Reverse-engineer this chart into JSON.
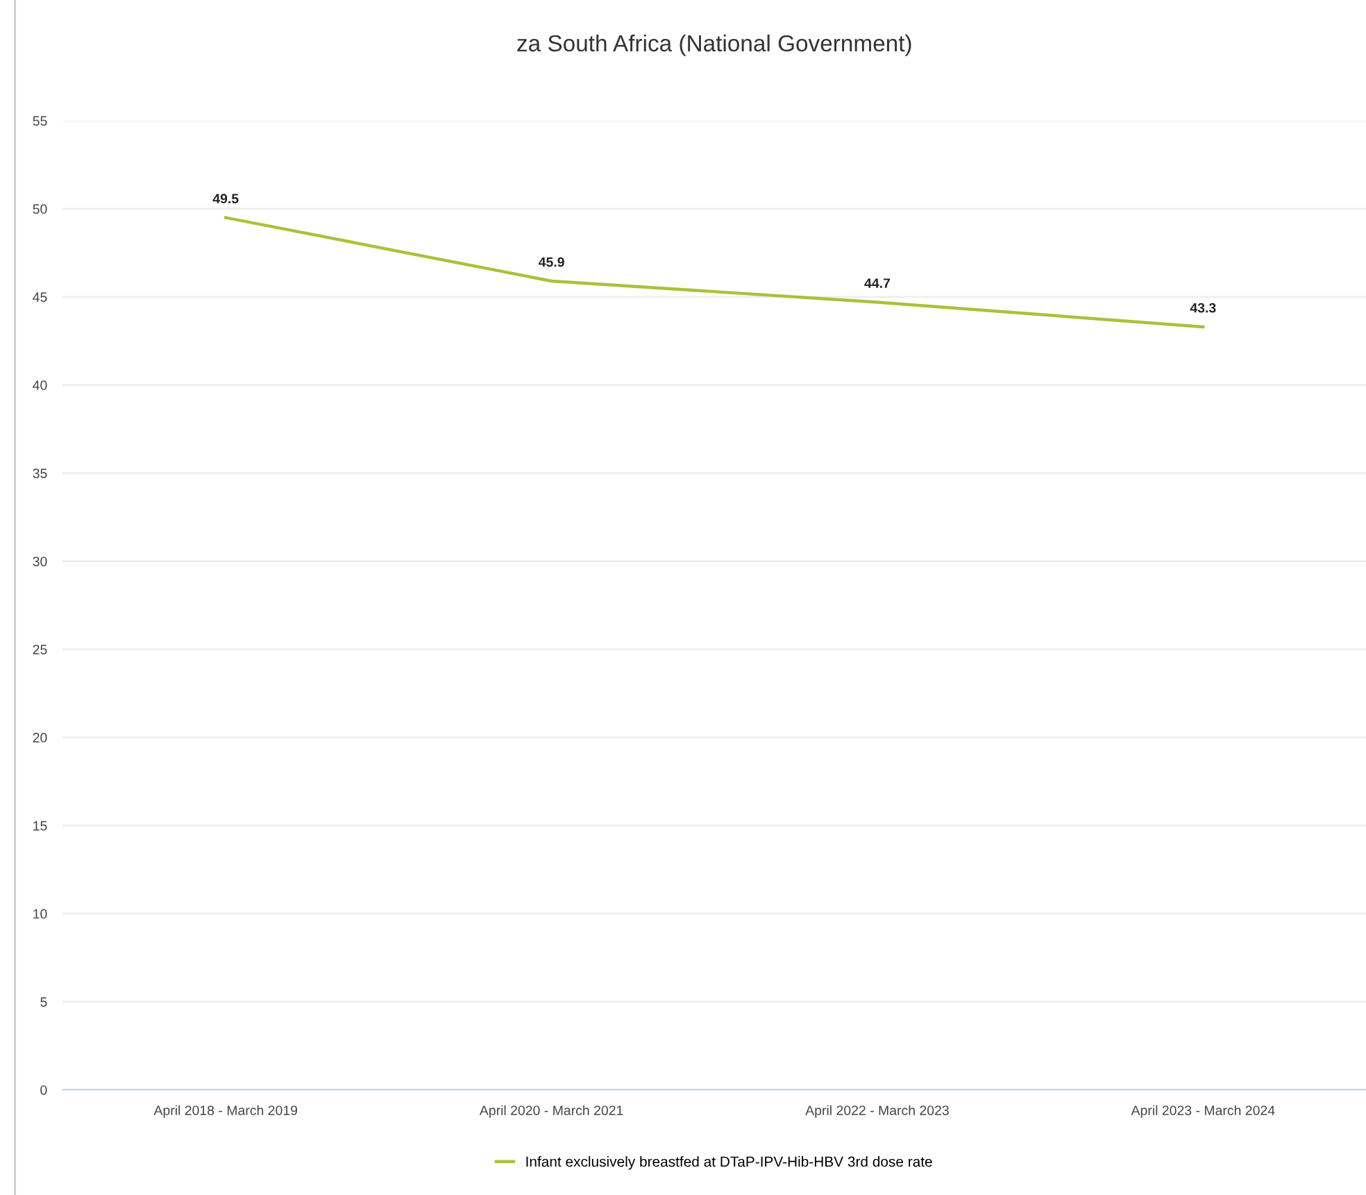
{
  "chart_data": {
    "type": "line",
    "title": "za South Africa (National Government)",
    "categories": [
      "April 2018 - March 2019",
      "April 2020 - March 2021",
      "April 2022 - March 2023",
      "April 2023 - March 2024"
    ],
    "series": [
      {
        "name": "Infant exclusively breastfed at DTaP-IPV-Hib-HBV 3rd dose rate",
        "color": "#a8c23a",
        "values": [
          49.5,
          45.9,
          44.7,
          43.3
        ]
      }
    ],
    "ylim": [
      0,
      55
    ],
    "yticks": [
      0,
      5,
      10,
      15,
      20,
      25,
      30,
      35,
      40,
      45,
      50,
      55
    ],
    "grid": "y",
    "legend": "bottom",
    "data_labels": true,
    "marker": "none",
    "line_style": "solid"
  }
}
